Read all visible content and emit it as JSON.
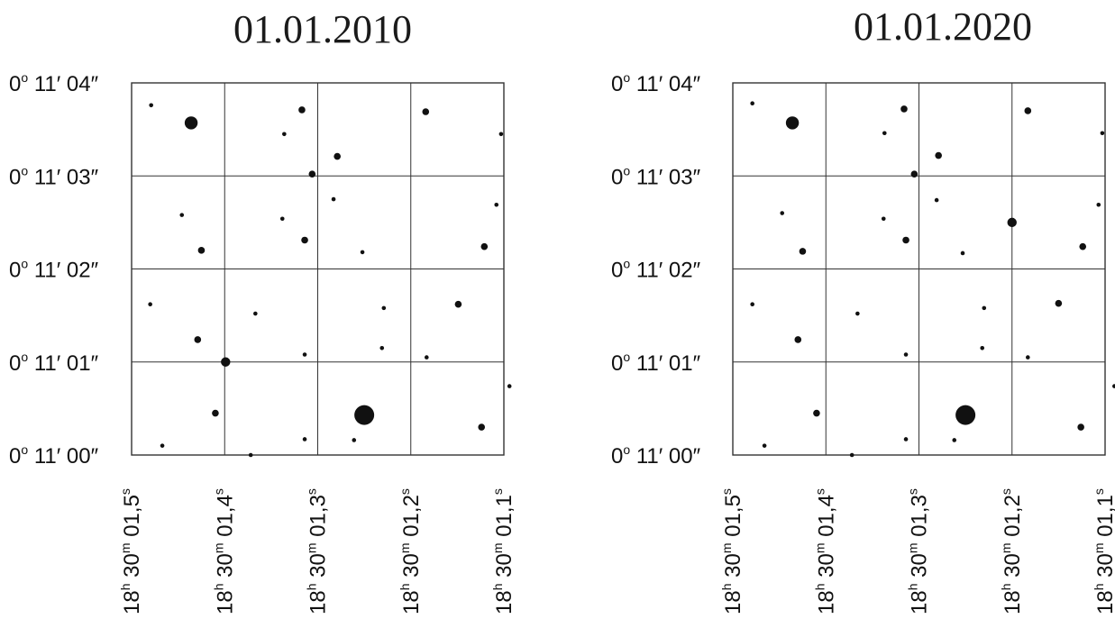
{
  "chart_data": [
    {
      "type": "scatter",
      "title": "01.01.2010",
      "xlabel": "",
      "ylabel": "",
      "grid": true,
      "x_axis": {
        "unit": "s (seconds of right ascension, 18h 30m)",
        "range": [
          1.5,
          1.1
        ],
        "ticks": [
          1.5,
          1.4,
          1.3,
          1.2,
          1.1
        ],
        "tick_labels": [
          {
            "h": "18",
            "m": "30",
            "s": "01,5",
            "hsup": "h",
            "msup": "m",
            "ssup": "s"
          },
          {
            "h": "18",
            "m": "30",
            "s": "01,4",
            "hsup": "h",
            "msup": "m",
            "ssup": "s"
          },
          {
            "h": "18",
            "m": "30",
            "s": "01,3",
            "hsup": "h",
            "msup": "m",
            "ssup": "s"
          },
          {
            "h": "18",
            "m": "30",
            "s": "01,2",
            "hsup": "h",
            "msup": "m",
            "ssup": "s"
          },
          {
            "h": "18",
            "m": "30",
            "s": "01,1",
            "hsup": "h",
            "msup": "m",
            "ssup": "s"
          }
        ]
      },
      "y_axis": {
        "unit": "arcsec (declination, 0° 11′)",
        "range": [
          0,
          4
        ],
        "ticks": [
          4,
          3,
          2,
          1,
          0
        ],
        "tick_labels": [
          {
            "deg": "0",
            "degsup": "o",
            "rest": " 11′ 04″"
          },
          {
            "deg": "0",
            "degsup": "o",
            "rest": " 11′ 03″"
          },
          {
            "deg": "0",
            "degsup": "o",
            "rest": " 11′ 02″"
          },
          {
            "deg": "0",
            "degsup": "o",
            "rest": " 11′ 01″"
          },
          {
            "deg": "0",
            "degsup": "o",
            "rest": " 11′ 00″"
          }
        ]
      },
      "points": [
        {
          "x": 1.479,
          "y": 3.76,
          "size": 1
        },
        {
          "x": 1.436,
          "y": 3.57,
          "size": 4
        },
        {
          "x": 1.317,
          "y": 3.71,
          "size": 2
        },
        {
          "x": 1.336,
          "y": 3.45,
          "size": 1
        },
        {
          "x": 1.184,
          "y": 3.69,
          "size": 2
        },
        {
          "x": 1.103,
          "y": 3.45,
          "size": 1
        },
        {
          "x": 1.279,
          "y": 3.21,
          "size": 2
        },
        {
          "x": 1.306,
          "y": 3.02,
          "size": 2
        },
        {
          "x": 1.446,
          "y": 2.58,
          "size": 1
        },
        {
          "x": 1.338,
          "y": 2.54,
          "size": 1
        },
        {
          "x": 1.283,
          "y": 2.75,
          "size": 1
        },
        {
          "x": 1.108,
          "y": 2.69,
          "size": 1
        },
        {
          "x": 1.425,
          "y": 2.2,
          "size": 2
        },
        {
          "x": 1.314,
          "y": 2.31,
          "size": 2
        },
        {
          "x": 1.252,
          "y": 2.18,
          "size": 1
        },
        {
          "x": 1.121,
          "y": 2.24,
          "size": 2
        },
        {
          "x": 1.48,
          "y": 1.62,
          "size": 1
        },
        {
          "x": 1.367,
          "y": 1.52,
          "size": 1
        },
        {
          "x": 1.229,
          "y": 1.58,
          "size": 1
        },
        {
          "x": 1.149,
          "y": 1.62,
          "size": 2
        },
        {
          "x": 1.429,
          "y": 1.24,
          "size": 2
        },
        {
          "x": 1.231,
          "y": 1.15,
          "size": 1
        },
        {
          "x": 1.314,
          "y": 1.08,
          "size": 1
        },
        {
          "x": 1.183,
          "y": 1.05,
          "size": 1
        },
        {
          "x": 1.399,
          "y": 1.0,
          "size": 3
        },
        {
          "x": 1.094,
          "y": 0.74,
          "size": 1
        },
        {
          "x": 1.41,
          "y": 0.45,
          "size": 2
        },
        {
          "x": 1.25,
          "y": 0.43,
          "size": 5
        },
        {
          "x": 1.124,
          "y": 0.3,
          "size": 2
        },
        {
          "x": 1.314,
          "y": 0.17,
          "size": 1
        },
        {
          "x": 1.261,
          "y": 0.16,
          "size": 1
        },
        {
          "x": 1.467,
          "y": 0.1,
          "size": 1
        },
        {
          "x": 1.372,
          "y": 0.0,
          "size": 1
        }
      ]
    },
    {
      "type": "scatter",
      "title": "01.01.2020",
      "xlabel": "",
      "ylabel": "",
      "grid": true,
      "x_axis": {
        "unit": "s (seconds of right ascension, 18h 30m)",
        "range": [
          1.5,
          1.1
        ],
        "ticks": [
          1.5,
          1.4,
          1.3,
          1.2,
          1.1
        ],
        "tick_labels": [
          {
            "h": "18",
            "m": "30",
            "s": "01,5",
            "hsup": "h",
            "msup": "m",
            "ssup": "s"
          },
          {
            "h": "18",
            "m": "30",
            "s": "01,4",
            "hsup": "h",
            "msup": "m",
            "ssup": "s"
          },
          {
            "h": "18",
            "m": "30",
            "s": "01,3",
            "hsup": "h",
            "msup": "m",
            "ssup": "s"
          },
          {
            "h": "18",
            "m": "30",
            "s": "01,2",
            "hsup": "h",
            "msup": "m",
            "ssup": "s"
          },
          {
            "h": "18",
            "m": "30",
            "s": "01,1",
            "hsup": "h",
            "msup": "m",
            "ssup": "s"
          }
        ]
      },
      "y_axis": {
        "unit": "arcsec (declination, 0° 11′)",
        "range": [
          0,
          4
        ],
        "ticks": [
          4,
          3,
          2,
          1,
          0
        ],
        "tick_labels": [
          {
            "deg": "0",
            "degsup": "o",
            "rest": " 11′ 04″"
          },
          {
            "deg": "0",
            "degsup": "o",
            "rest": " 11′ 03″"
          },
          {
            "deg": "0",
            "degsup": "o",
            "rest": " 11′ 02″"
          },
          {
            "deg": "0",
            "degsup": "o",
            "rest": " 11′ 01″"
          },
          {
            "deg": "0",
            "degsup": "o",
            "rest": " 11′ 00″"
          }
        ]
      },
      "points": [
        {
          "x": 1.479,
          "y": 3.78,
          "size": 1
        },
        {
          "x": 1.436,
          "y": 3.57,
          "size": 4
        },
        {
          "x": 1.316,
          "y": 3.72,
          "size": 2
        },
        {
          "x": 1.337,
          "y": 3.46,
          "size": 1
        },
        {
          "x": 1.183,
          "y": 3.7,
          "size": 2
        },
        {
          "x": 1.103,
          "y": 3.46,
          "size": 1
        },
        {
          "x": 1.279,
          "y": 3.22,
          "size": 2
        },
        {
          "x": 1.305,
          "y": 3.02,
          "size": 2
        },
        {
          "x": 1.447,
          "y": 2.6,
          "size": 1
        },
        {
          "x": 1.338,
          "y": 2.54,
          "size": 1
        },
        {
          "x": 1.281,
          "y": 2.74,
          "size": 1
        },
        {
          "x": 1.107,
          "y": 2.69,
          "size": 1
        },
        {
          "x": 1.425,
          "y": 2.19,
          "size": 2
        },
        {
          "x": 1.314,
          "y": 2.31,
          "size": 2
        },
        {
          "x": 1.253,
          "y": 2.17,
          "size": 1
        },
        {
          "x": 1.2,
          "y": 2.5,
          "size": 3
        },
        {
          "x": 1.124,
          "y": 2.24,
          "size": 2
        },
        {
          "x": 1.479,
          "y": 1.62,
          "size": 1
        },
        {
          "x": 1.366,
          "y": 1.52,
          "size": 1
        },
        {
          "x": 1.23,
          "y": 1.58,
          "size": 1
        },
        {
          "x": 1.15,
          "y": 1.63,
          "size": 2
        },
        {
          "x": 1.43,
          "y": 1.24,
          "size": 2
        },
        {
          "x": 1.232,
          "y": 1.15,
          "size": 1
        },
        {
          "x": 1.314,
          "y": 1.08,
          "size": 1
        },
        {
          "x": 1.183,
          "y": 1.05,
          "size": 1
        },
        {
          "x": 1.09,
          "y": 0.74,
          "size": 1
        },
        {
          "x": 1.41,
          "y": 0.45,
          "size": 2
        },
        {
          "x": 1.25,
          "y": 0.43,
          "size": 5
        },
        {
          "x": 1.126,
          "y": 0.3,
          "size": 2
        },
        {
          "x": 1.314,
          "y": 0.17,
          "size": 1
        },
        {
          "x": 1.262,
          "y": 0.16,
          "size": 1
        },
        {
          "x": 1.466,
          "y": 0.1,
          "size": 1
        },
        {
          "x": 1.372,
          "y": 0.0,
          "size": 1
        }
      ]
    }
  ]
}
